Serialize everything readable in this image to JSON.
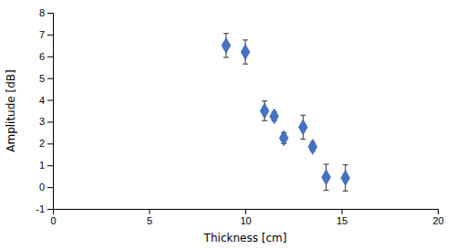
{
  "chart_data": {
    "type": "scatter",
    "x": [
      9.0,
      10.0,
      11.0,
      11.5,
      12.0,
      13.0,
      13.5,
      14.2,
      15.2
    ],
    "values": [
      6.5,
      6.2,
      3.5,
      3.25,
      2.25,
      2.75,
      1.85,
      0.45,
      0.42
    ],
    "errors": [
      0.55,
      0.55,
      0.45,
      0.2,
      0.25,
      0.55,
      0.2,
      0.6,
      0.6
    ],
    "color": "#4472C4",
    "marker": "diamond",
    "xlabel": "Thickness [cm]",
    "ylabel": "Amplitude [dB]",
    "xlim": [
      0,
      20
    ],
    "ylim": [
      -1,
      8
    ],
    "xticks": [
      0,
      5,
      10,
      15,
      20
    ],
    "yticks": [
      -1,
      0,
      1,
      2,
      3,
      4,
      5,
      6,
      7,
      8
    ],
    "grid": false
  }
}
